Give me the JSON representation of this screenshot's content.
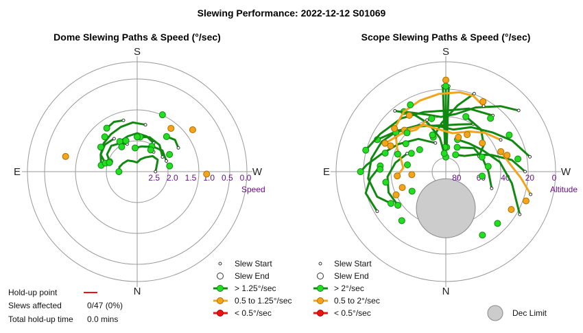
{
  "chart_data": {
    "type": "scatter",
    "title": "Slewing Performance: 2022-12-12 S01069",
    "panels": [
      {
        "title": "Dome Slewing Paths & Speed (°/sec)",
        "compass": {
          "north": "N",
          "south": "S",
          "east": "E",
          "west": "W"
        },
        "radial_axis": {
          "name": "Speed",
          "ticks": [
            "2.5",
            "2.0",
            "1.5",
            "1.0",
            "0.5",
            "0.0"
          ],
          "tick_values": [
            2.5,
            2.0,
            1.5,
            1.0,
            0.5,
            0.0
          ],
          "outer_value": 0.0,
          "inner_value": 3.0
        },
        "legend": {
          "start": "Slew Start",
          "end": "Slew End",
          "fast": "> 1.25°/sec",
          "medium": "0.5 to 1.25°/sec",
          "slow": "< 0.5°/sec"
        },
        "stats": {
          "holdup_label": "Hold-up point",
          "affected_label": "Slews affected",
          "affected_value": "0/47 (0%)",
          "total_label": "Total hold-up time",
          "total_value": "0.0 mins"
        },
        "paths": [
          {
            "az": [
              200,
              210,
              225,
              240,
              250
            ],
            "val": [
              2.2,
              2.1,
              2.0,
              2.05,
              2.2
            ],
            "cat": "fast"
          },
          {
            "az": [
              150,
              165,
              180,
              195,
              210
            ],
            "val": [
              2.1,
              2.0,
              1.95,
              2.0,
              2.05
            ],
            "cat": "fast"
          },
          {
            "az": [
              120,
              140,
              160,
              175
            ],
            "val": [
              2.2,
              2.05,
              2.0,
              2.05
            ],
            "cat": "fast"
          },
          {
            "az": [
              215,
              230,
              245,
              260
            ],
            "val": [
              1.9,
              1.85,
              1.9,
              2.0
            ],
            "cat": "fast"
          },
          {
            "az": [
              110,
              130,
              150
            ],
            "val": [
              2.15,
              2.1,
              2.2
            ],
            "cat": "fast"
          },
          {
            "az": [
              170,
              185,
              200,
              215,
              230,
              245,
              255
            ],
            "val": [
              1.7,
              1.65,
              1.7,
              1.75,
              1.8,
              1.9,
              2.1
            ],
            "cat": "fast"
          },
          {
            "az": [
              90,
              105,
              120,
              135,
              150,
              165,
              180,
              200,
              220,
              240,
              255,
              270
            ],
            "val": [
              2.5,
              2.45,
              2.35,
              2.4,
              2.55,
              2.65,
              2.75,
              2.7,
              2.6,
              2.55,
              2.5,
              2.5
            ],
            "cat": "fast"
          },
          {
            "az": [
              120,
              130,
              140
            ],
            "val": [
              1.7,
              1.65,
              1.75
            ],
            "cat": "fast"
          },
          {
            "az": [
              195,
              205,
              215
            ],
            "val": [
              1.55,
              1.5,
              1.55
            ],
            "cat": "fast"
          },
          {
            "az": [
              140,
              155,
              170,
              185
            ],
            "val": [
              2.3,
              2.25,
              2.3,
              2.35
            ],
            "cat": "fast"
          }
        ],
        "markers": [
          {
            "az": 127,
            "val": 1.1,
            "cat": "medium"
          },
          {
            "az": 88,
            "val": 1.1,
            "cat": "medium"
          },
          {
            "az": 142,
            "val": 1.5,
            "cat": "medium"
          },
          {
            "az": 258,
            "val": 1.0,
            "cat": "medium"
          },
          {
            "az": 156,
            "val": 1.3,
            "cat": "fast"
          },
          {
            "az": 200,
            "val": 2.1,
            "cat": "fast"
          },
          {
            "az": 223,
            "val": 1.7,
            "cat": "fast"
          },
          {
            "az": 236,
            "val": 1.8,
            "cat": "fast"
          },
          {
            "az": 118,
            "val": 2.0,
            "cat": "fast"
          },
          {
            "az": 100,
            "val": 2.1,
            "cat": "fast"
          },
          {
            "az": 148,
            "val": 2.3,
            "cat": "fast"
          },
          {
            "az": 212,
            "val": 2.2,
            "cat": "fast"
          },
          {
            "az": 252,
            "val": 2.2,
            "cat": "fast"
          },
          {
            "az": 180,
            "val": 2.05,
            "cat": "fast"
          }
        ]
      },
      {
        "title": "Scope Slewing Paths & Speed (°/sec)",
        "compass": {
          "north": "N",
          "south": "S",
          "east": "E",
          "west": "W"
        },
        "radial_axis": {
          "name": "Altitude",
          "ticks": [
            "80",
            "60",
            "40",
            "20",
            "0"
          ],
          "tick_values": [
            80,
            60,
            40,
            20,
            0
          ],
          "outer_value": 0,
          "inner_value": 90
        },
        "dec_limit": {
          "label": "Dec Limit",
          "az": 0,
          "alt": 60
        },
        "legend": {
          "start": "Slew Start",
          "end": "Slew End",
          "fast": "> 2°/sec",
          "medium": "0.5 to 2°/sec",
          "slow": "< 0.5°/sec"
        },
        "paths": [
          {
            "az": [
              180,
              180,
              180,
              180
            ],
            "val": [
              15,
              35,
              55,
              78
            ],
            "cat": "fast"
          },
          {
            "az": [
              178,
              178,
              178
            ],
            "val": [
              20,
              45,
              70
            ],
            "cat": "fast"
          },
          {
            "az": [
              182,
              182,
              182
            ],
            "val": [
              20,
              45,
              70
            ],
            "cat": "fast"
          },
          {
            "az": [
              130,
              140,
              155,
              170,
              185,
              200,
              215
            ],
            "val": [
              12,
              20,
              32,
              42,
              45,
              40,
              30
            ],
            "cat": "fast"
          },
          {
            "az": [
              100,
              115,
              130,
              150,
              170,
              190,
              210,
              230,
              245
            ],
            "val": [
              20,
              30,
              40,
              48,
              55,
              52,
              46,
              38,
              28
            ],
            "cat": "fast"
          },
          {
            "az": [
              60,
              80,
              100,
              120,
              140,
              160
            ],
            "val": [
              20,
              35,
              45,
              55,
              60,
              62
            ],
            "cat": "fast"
          },
          {
            "az": [
              200,
              220,
              240,
              255,
              265,
              270
            ],
            "val": [
              65,
              55,
              45,
              35,
              25,
              20
            ],
            "cat": "fast"
          },
          {
            "az": [
              140,
              160,
              180,
              200,
              220,
              240,
              255
            ],
            "val": [
              30,
              35,
              40,
              38,
              33,
              28,
              22
            ],
            "cat": "fast"
          },
          {
            "az": [
              230,
              245,
              260,
              275,
              290,
              300
            ],
            "val": [
              38,
              32,
              28,
              26,
              30,
              38
            ],
            "cat": "fast"
          },
          {
            "az": [
              90,
              100,
              110,
              120,
              130,
              150
            ],
            "val": [
              25,
              35,
              50,
              62,
              70,
              74
            ],
            "cat": "fast"
          },
          {
            "az": [
              220,
              210,
              200,
              190,
              185
            ],
            "val": [
              25,
              35,
              48,
              62,
              75
            ],
            "cat": "fast"
          },
          {
            "az": [
              150,
              165,
              180,
              200,
              215,
              232
            ],
            "val": [
              45,
              50,
              52,
              50,
              45,
              38
            ],
            "cat": "fast"
          },
          {
            "az": [
              115,
              125,
              140,
              160
            ],
            "val": [
              60,
              52,
              45,
              42
            ],
            "cat": "fast"
          },
          {
            "az": [
              70,
              90,
              110,
              130,
              155
            ],
            "val": [
              50,
              55,
              58,
              60,
              68
            ],
            "cat": "fast"
          },
          {
            "az": [
              245,
              260,
              275,
              290,
              305
            ],
            "val": [
              55,
              48,
              42,
              40,
              42
            ],
            "cat": "fast"
          },
          {
            "az": [
              300,
              285,
              275,
              265
            ],
            "val": [
              25,
              22,
              28,
              36
            ],
            "cat": "fast"
          },
          {
            "az": [
              160,
              170,
              185,
              200
            ],
            "val": [
              22,
              35,
              50,
              60
            ],
            "cat": "fast"
          },
          {
            "az": [
              150,
              160,
              170,
              185,
              200,
              215,
              230
            ],
            "val": [
              28,
              24,
              24,
              26,
              28,
              30,
              35
            ],
            "cat": "medium"
          },
          {
            "az": [
              120,
              135,
              150,
              170,
              185,
              205,
              225
            ],
            "val": [
              38,
              45,
              52,
              58,
              56,
              48,
              42
            ],
            "cat": "medium"
          },
          {
            "az": [
              235,
              245,
              255,
              265,
              275
            ],
            "val": [
              40,
              46,
              52,
              55,
              50
            ],
            "cat": "medium"
          },
          {
            "az": [
              75,
              85,
              95,
              110
            ],
            "val": [
              18,
              28,
              36,
              42
            ],
            "cat": "medium"
          },
          {
            "az": [
              200,
              215,
              230,
              245
            ],
            "val": [
              45,
              48,
              42,
              35
            ],
            "cat": "medium"
          }
        ],
        "markers": [
          {
            "az": 180,
            "val": 15,
            "cat": "medium"
          },
          {
            "az": 180,
            "val": 20,
            "cat": "fast"
          },
          {
            "az": 152,
            "val": 25,
            "cat": "medium"
          },
          {
            "az": 213,
            "val": 35,
            "cat": "medium"
          },
          {
            "az": 208,
            "val": 28,
            "cat": "fast"
          },
          {
            "az": 245,
            "val": 40,
            "cat": "medium"
          },
          {
            "az": 250,
            "val": 48,
            "cat": "fast"
          },
          {
            "az": 235,
            "val": 50,
            "cat": "fast"
          },
          {
            "az": 253,
            "val": 38,
            "cat": "fast"
          },
          {
            "az": 268,
            "val": 36,
            "cat": "fast"
          },
          {
            "az": 280,
            "val": 40,
            "cat": "fast"
          },
          {
            "az": 140,
            "val": 33,
            "cat": "fast"
          },
          {
            "az": 120,
            "val": 30,
            "cat": "fast"
          },
          {
            "az": 100,
            "val": 30,
            "cat": "fast"
          },
          {
            "az": 105,
            "val": 38,
            "cat": "medium"
          },
          {
            "az": 70,
            "val": 20,
            "cat": "medium"
          },
          {
            "az": 60,
            "val": 28,
            "cat": "medium"
          },
          {
            "az": 45,
            "val": 30,
            "cat": "fast"
          },
          {
            "az": 30,
            "val": 30,
            "cat": "fast"
          },
          {
            "az": 318,
            "val": 36,
            "cat": "fast"
          },
          {
            "az": 295,
            "val": 45,
            "cat": "medium"
          },
          {
            "az": 290,
            "val": 52,
            "cat": "medium"
          },
          {
            "az": 300,
            "val": 58,
            "cat": "fast"
          },
          {
            "az": 230,
            "val": 62,
            "cat": "fast"
          },
          {
            "az": 200,
            "val": 58,
            "cat": "fast"
          },
          {
            "az": 160,
            "val": 60,
            "cat": "medium"
          },
          {
            "az": 150,
            "val": 55,
            "cat": "medium"
          },
          {
            "az": 128,
            "val": 52,
            "cat": "medium"
          },
          {
            "az": 112,
            "val": 58,
            "cat": "fast"
          },
          {
            "az": 97,
            "val": 55,
            "cat": "fast"
          },
          {
            "az": 83,
            "val": 60,
            "cat": "fast"
          },
          {
            "az": 225,
            "val": 45,
            "cat": "fast"
          },
          {
            "az": 242,
            "val": 58,
            "cat": "fast"
          },
          {
            "az": 275,
            "val": 62,
            "cat": "medium"
          },
          {
            "az": 260,
            "val": 58,
            "cat": "fast"
          },
          {
            "az": 195,
            "val": 45,
            "cat": "fast"
          }
        ]
      }
    ]
  },
  "colors": {
    "fast_fill": "#22dd22",
    "fast_line": "#118811",
    "medium_fill": "#f2a41a",
    "medium_line": "#b06e00",
    "slow_fill": "#ee1111",
    "slow_line": "#990000",
    "holdup": "#ee1111",
    "grid": "#999999",
    "ring_label": "#6a0d8a",
    "dec_limit": "#cccccc"
  }
}
